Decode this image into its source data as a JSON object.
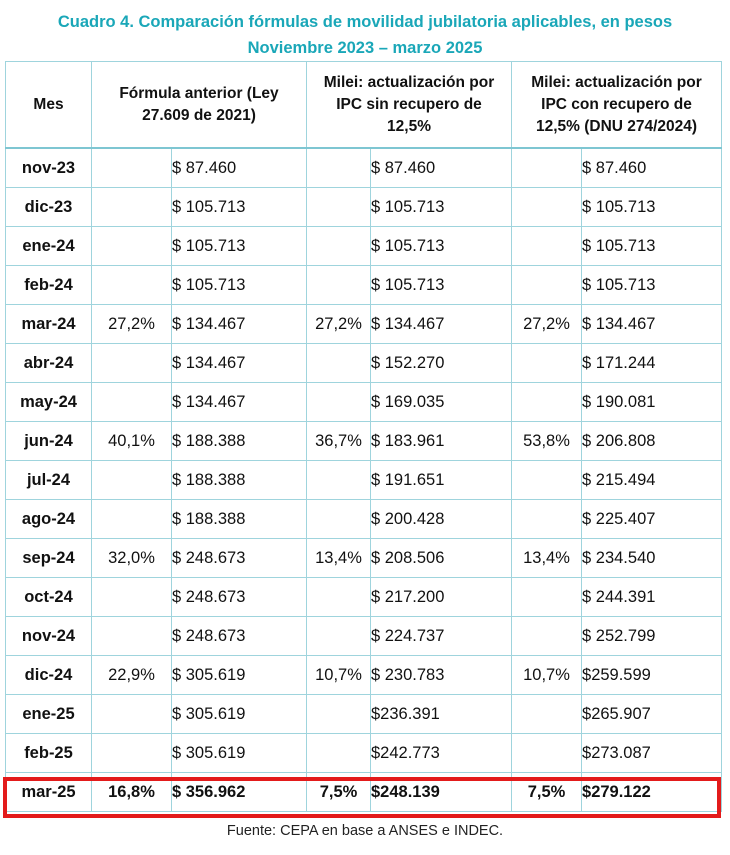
{
  "title": {
    "line1": "Cuadro 4. Comparación fórmulas de movilidad jubilatoria aplicables, en pesos",
    "line2": "Noviembre 2023 – marzo 2025"
  },
  "table": {
    "headers": {
      "mes": "Mes",
      "formula_anterior": "Fórmula anterior (Ley 27.609 de 2021)",
      "sin_recupero": "Milei: actualización por IPC sin recupero de 12,5%",
      "con_recupero": "Milei: actualización por IPC con recupero de 12,5% (DNU 274/2024)"
    },
    "rows": [
      {
        "mes": "nov-23",
        "pa": "",
        "va": "$ 87.460",
        "pb": "",
        "vb": "$ 87.460",
        "pc": "",
        "vc": "$ 87.460"
      },
      {
        "mes": "dic-23",
        "pa": "",
        "va": "$ 105.713",
        "pb": "",
        "vb": "$ 105.713",
        "pc": "",
        "vc": "$ 105.713"
      },
      {
        "mes": "ene-24",
        "pa": "",
        "va": "$ 105.713",
        "pb": "",
        "vb": "$ 105.713",
        "pc": "",
        "vc": "$ 105.713"
      },
      {
        "mes": "feb-24",
        "pa": "",
        "va": "$ 105.713",
        "pb": "",
        "vb": "$ 105.713",
        "pc": "",
        "vc": "$ 105.713"
      },
      {
        "mes": "mar-24",
        "pa": "27,2%",
        "va": "$ 134.467",
        "pb": "27,2%",
        "vb": "$ 134.467",
        "pc": "27,2%",
        "vc": "$ 134.467"
      },
      {
        "mes": "abr-24",
        "pa": "",
        "va": "$ 134.467",
        "pb": "",
        "vb": "$ 152.270",
        "pc": "",
        "vc": "$ 171.244"
      },
      {
        "mes": "may-24",
        "pa": "",
        "va": "$ 134.467",
        "pb": "",
        "vb": "$ 169.035",
        "pc": "",
        "vc": "$ 190.081"
      },
      {
        "mes": "jun-24",
        "pa": "40,1%",
        "va": "$ 188.388",
        "pb": "36,7%",
        "vb": "$ 183.961",
        "pc": "53,8%",
        "vc": "$ 206.808"
      },
      {
        "mes": "jul-24",
        "pa": "",
        "va": "$ 188.388",
        "pb": "",
        "vb": "$ 191.651",
        "pc": "",
        "vc": "$ 215.494"
      },
      {
        "mes": "ago-24",
        "pa": "",
        "va": "$ 188.388",
        "pb": "",
        "vb": "$ 200.428",
        "pc": "",
        "vc": "$ 225.407"
      },
      {
        "mes": "sep-24",
        "pa": "32,0%",
        "va": "$ 248.673",
        "pb": "13,4%",
        "vb": "$ 208.506",
        "pc": "13,4%",
        "vc": "$ 234.540"
      },
      {
        "mes": "oct-24",
        "pa": "",
        "va": "$ 248.673",
        "pb": "",
        "vb": "$ 217.200",
        "pc": "",
        "vc": "$ 244.391"
      },
      {
        "mes": "nov-24",
        "pa": "",
        "va": "$ 248.673",
        "pb": "",
        "vb": "$ 224.737",
        "pc": "",
        "vc": "$ 252.799"
      },
      {
        "mes": "dic-24",
        "pa": "22,9%",
        "va": "$ 305.619",
        "pb": "10,7%",
        "vb": "$ 230.783",
        "pc": "10,7%",
        "vc": "$259.599"
      },
      {
        "mes": "ene-25",
        "pa": "",
        "va": "$ 305.619",
        "pb": "",
        "vb": "$236.391",
        "pc": "",
        "vc": "$265.907"
      },
      {
        "mes": "feb-25",
        "pa": "",
        "va": "$ 305.619",
        "pb": "",
        "vb": "$242.773",
        "pc": "",
        "vc": "$273.087"
      },
      {
        "mes": "mar-25",
        "pa": "16,8%",
        "va": "$ 356.962",
        "pb": "7,5%",
        "vb": "$248.139",
        "pc": "7,5%",
        "vc": "$279.122"
      }
    ]
  },
  "source": "Fuente: CEPA en base a ANSES e INDEC.",
  "colors": {
    "title": "#1aa7b8",
    "grid": "#9fd4dd",
    "highlight": "#e31b1b"
  }
}
